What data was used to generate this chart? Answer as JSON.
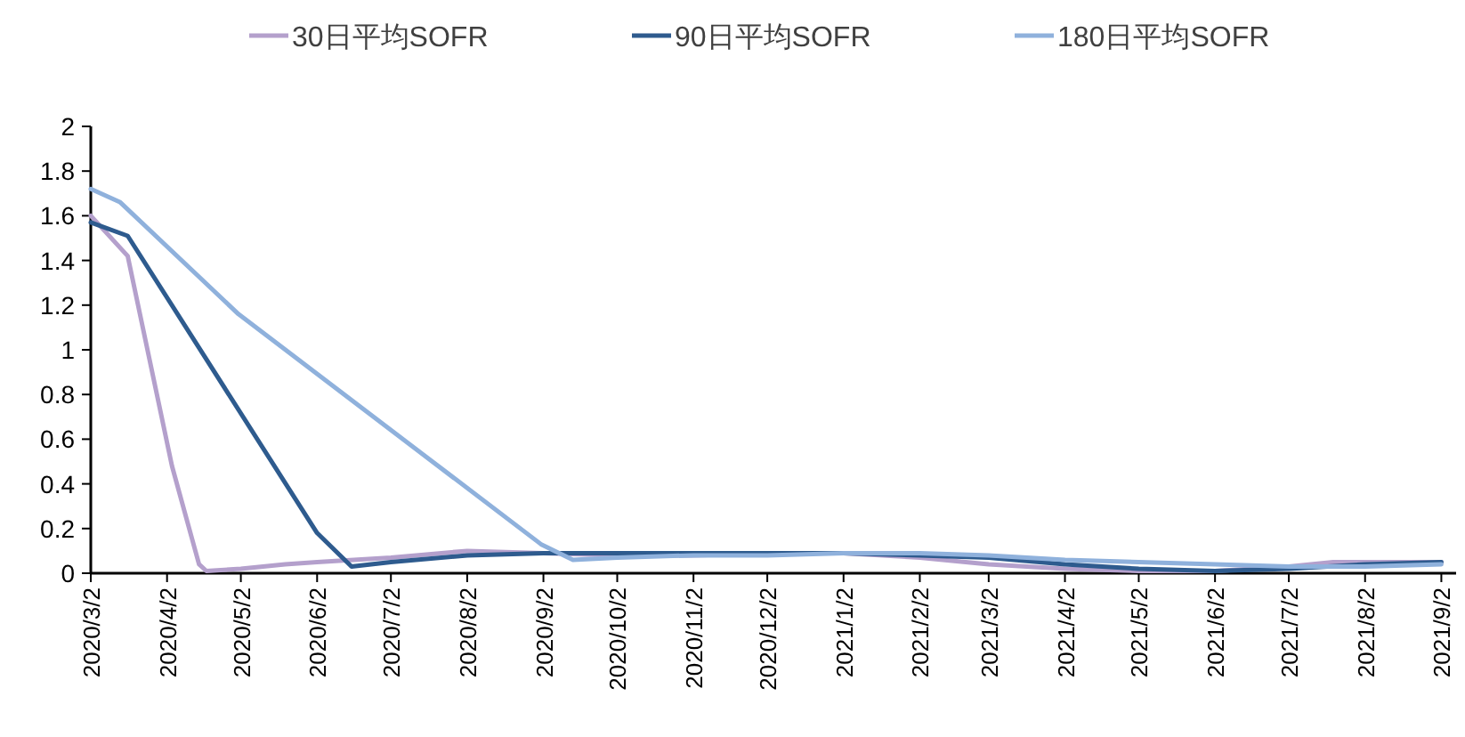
{
  "chart_data": {
    "type": "line",
    "legend": "top",
    "grid": false,
    "line_style": "solid",
    "xlim": [
      "2020-03-02",
      "2021-09-08"
    ],
    "ylim": [
      0,
      2
    ],
    "yticks": [
      0,
      0.2,
      0.4,
      0.6,
      0.8,
      1,
      1.2,
      1.4,
      1.6,
      1.8,
      2
    ],
    "xticks": [
      {
        "value": "2020-03-02",
        "label": "2020/3/2"
      },
      {
        "value": "2020-04-02",
        "label": "2020/4/2"
      },
      {
        "value": "2020-05-02",
        "label": "2020/5/2"
      },
      {
        "value": "2020-06-02",
        "label": "2020/6/2"
      },
      {
        "value": "2020-07-02",
        "label": "2020/7/2"
      },
      {
        "value": "2020-08-02",
        "label": "2020/8/2"
      },
      {
        "value": "2020-09-02",
        "label": "2020/9/2"
      },
      {
        "value": "2020-10-02",
        "label": "2020/10/2"
      },
      {
        "value": "2020-11-02",
        "label": "2020/11/2"
      },
      {
        "value": "2020-12-02",
        "label": "2020/12/2"
      },
      {
        "value": "2021-01-02",
        "label": "2021/1/2"
      },
      {
        "value": "2021-02-02",
        "label": "2021/2/2"
      },
      {
        "value": "2021-03-02",
        "label": "2021/3/2"
      },
      {
        "value": "2021-04-02",
        "label": "2021/4/2"
      },
      {
        "value": "2021-05-02",
        "label": "2021/5/2"
      },
      {
        "value": "2021-06-02",
        "label": "2021/6/2"
      },
      {
        "value": "2021-07-02",
        "label": "2021/7/2"
      },
      {
        "value": "2021-08-02",
        "label": "2021/8/2"
      },
      {
        "value": "2021-09-02",
        "label": "2021/9/2"
      }
    ],
    "series": [
      {
        "name": "30日平均SOFR",
        "color": "#b4a0cc",
        "x": [
          "2020-03-02",
          "2020-03-17",
          "2020-04-04",
          "2020-04-15",
          "2020-04-18",
          "2020-05-02",
          "2020-05-20",
          "2020-06-02",
          "2020-07-02",
          "2020-08-02",
          "2020-09-02",
          "2020-10-02",
          "2020-11-02",
          "2020-12-02",
          "2021-01-02",
          "2021-02-02",
          "2021-03-02",
          "2021-04-02",
          "2021-05-02",
          "2021-06-02",
          "2021-07-02",
          "2021-07-20",
          "2021-09-02"
        ],
        "values": [
          1.6,
          1.42,
          0.48,
          0.04,
          0.01,
          0.02,
          0.04,
          0.05,
          0.07,
          0.1,
          0.09,
          0.08,
          0.08,
          0.09,
          0.09,
          0.07,
          0.04,
          0.02,
          0.01,
          0.01,
          0.03,
          0.05,
          0.05
        ]
      },
      {
        "name": "90日平均SOFR",
        "color": "#2e5b8e",
        "x": [
          "2020-03-02",
          "2020-03-17",
          "2020-06-02",
          "2020-06-16",
          "2020-07-02",
          "2020-08-02",
          "2020-09-02",
          "2020-10-02",
          "2020-11-02",
          "2020-12-02",
          "2021-01-02",
          "2021-02-02",
          "2021-03-02",
          "2021-04-02",
          "2021-05-02",
          "2021-06-02",
          "2021-07-02",
          "2021-08-02",
          "2021-09-02"
        ],
        "values": [
          1.57,
          1.51,
          0.18,
          0.03,
          0.05,
          0.08,
          0.09,
          0.09,
          0.09,
          0.09,
          0.09,
          0.08,
          0.07,
          0.04,
          0.02,
          0.01,
          0.02,
          0.04,
          0.05
        ]
      },
      {
        "name": "180日平均SOFR",
        "color": "#8fb1dc",
        "x": [
          "2020-03-02",
          "2020-03-14",
          "2020-05-01",
          "2020-09-01",
          "2020-09-14",
          "2020-10-02",
          "2020-11-02",
          "2020-12-02",
          "2021-01-02",
          "2021-02-02",
          "2021-03-02",
          "2021-04-02",
          "2021-05-02",
          "2021-06-02",
          "2021-07-02",
          "2021-08-02",
          "2021-09-02"
        ],
        "values": [
          1.72,
          1.66,
          1.16,
          0.13,
          0.06,
          0.07,
          0.08,
          0.08,
          0.09,
          0.09,
          0.08,
          0.06,
          0.05,
          0.04,
          0.03,
          0.03,
          0.04
        ]
      }
    ]
  }
}
